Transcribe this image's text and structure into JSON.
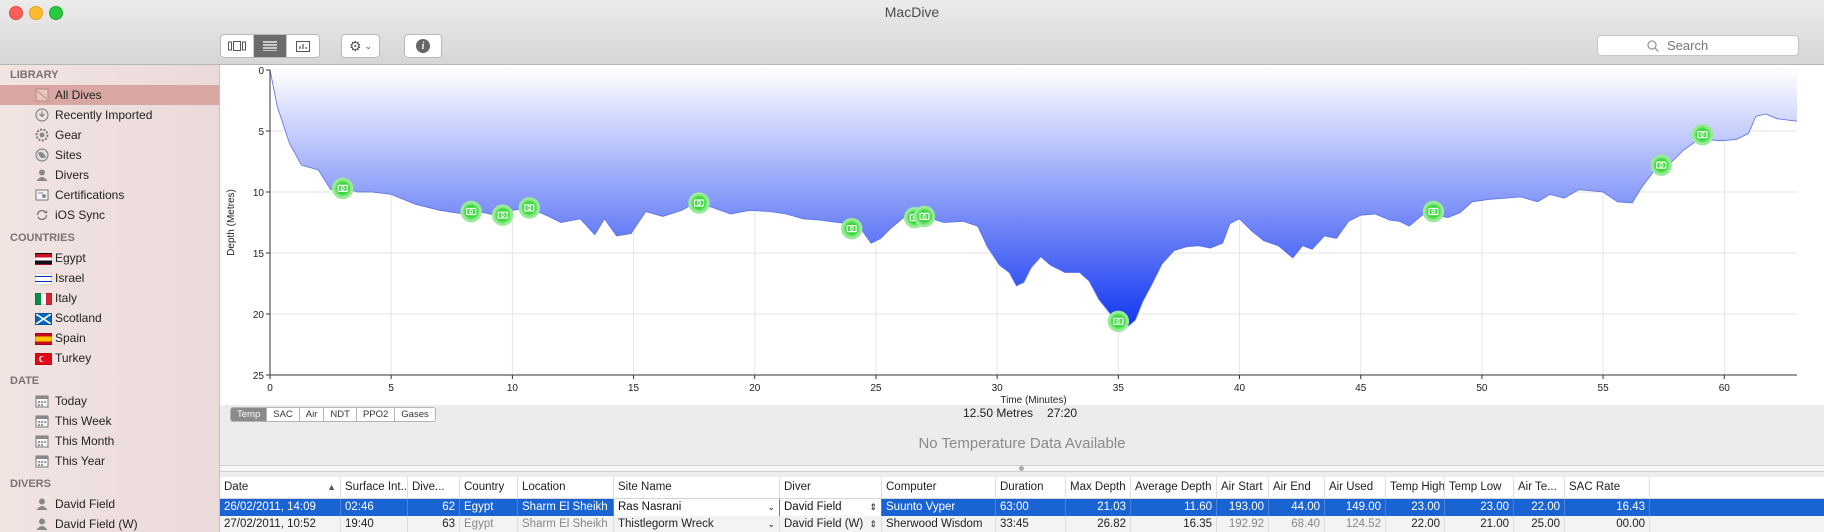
{
  "window": {
    "title": "MacDive"
  },
  "toolbar": {
    "search_placeholder": "Search"
  },
  "sidebar": {
    "sections": [
      {
        "header": "LIBRARY",
        "items": [
          {
            "label": "All Dives",
            "icon": "dives-icon",
            "selected": true
          },
          {
            "label": "Recently Imported",
            "icon": "import-icon"
          },
          {
            "label": "Gear",
            "icon": "gear-icon"
          },
          {
            "label": "Sites",
            "icon": "globe-icon"
          },
          {
            "label": "Divers",
            "icon": "person-icon"
          },
          {
            "label": "Certifications",
            "icon": "certificate-icon"
          },
          {
            "label": "iOS Sync",
            "icon": "sync-icon"
          }
        ]
      },
      {
        "header": "COUNTRIES",
        "items": [
          {
            "label": "Egypt",
            "icon": "flag-egypt-icon"
          },
          {
            "label": "Israel",
            "icon": "flag-israel-icon"
          },
          {
            "label": "Italy",
            "icon": "flag-italy-icon"
          },
          {
            "label": "Scotland",
            "icon": "flag-scotland-icon"
          },
          {
            "label": "Spain",
            "icon": "flag-spain-icon"
          },
          {
            "label": "Turkey",
            "icon": "flag-turkey-icon"
          }
        ]
      },
      {
        "header": "DATE",
        "items": [
          {
            "label": "Today",
            "icon": "calendar-icon"
          },
          {
            "label": "This Week",
            "icon": "calendar-icon"
          },
          {
            "label": "This Month",
            "icon": "calendar-icon"
          },
          {
            "label": "This Year",
            "icon": "calendar-icon"
          }
        ]
      },
      {
        "header": "DIVERS",
        "items": [
          {
            "label": "David Field",
            "icon": "person-icon"
          },
          {
            "label": "David Field (W)",
            "icon": "person-icon"
          }
        ]
      }
    ]
  },
  "chart_data": {
    "type": "area",
    "xlabel": "Time (Minutes)",
    "ylabel": "Depth (Metres)",
    "xlim": [
      0,
      63
    ],
    "ylim": [
      0,
      25
    ],
    "y_inverted": true,
    "x_ticks": [
      0,
      5,
      10,
      15,
      20,
      25,
      30,
      35,
      40,
      45,
      50,
      55,
      60
    ],
    "y_ticks": [
      0,
      5,
      10,
      15,
      20,
      25
    ],
    "grid": true,
    "colors": {
      "fill_top": "#ffffff",
      "fill_bottom": "#1236f2",
      "photo_marker": "#2fd12f"
    },
    "profile": [
      [
        0,
        0
      ],
      [
        0.3,
        3
      ],
      [
        0.8,
        6
      ],
      [
        1.3,
        7.8
      ],
      [
        2,
        8.2
      ],
      [
        2.5,
        9.8
      ],
      [
        3,
        9.6
      ],
      [
        3.6,
        10
      ],
      [
        4.2,
        10
      ],
      [
        5,
        10.2
      ],
      [
        6,
        11
      ],
      [
        7,
        11.5
      ],
      [
        8,
        11.8
      ],
      [
        8.6,
        11.6
      ],
      [
        9.3,
        11.9
      ],
      [
        10,
        11.5
      ],
      [
        10.7,
        11.3
      ],
      [
        11.5,
        12
      ],
      [
        12,
        12.5
      ],
      [
        12.8,
        12.2
      ],
      [
        13.4,
        13.5
      ],
      [
        13.8,
        12.2
      ],
      [
        14.3,
        13.6
      ],
      [
        14.9,
        13.4
      ],
      [
        15.5,
        11.6
      ],
      [
        16.2,
        12
      ],
      [
        17,
        11.5
      ],
      [
        17.6,
        10.8
      ],
      [
        18.3,
        11.3
      ],
      [
        19,
        11.8
      ],
      [
        19.8,
        11.5
      ],
      [
        20.6,
        11.6
      ],
      [
        21.3,
        11.8
      ],
      [
        22,
        12.2
      ],
      [
        22.7,
        12.3
      ],
      [
        23.4,
        12.5
      ],
      [
        24,
        12.6
      ],
      [
        24.3,
        12.8
      ],
      [
        24.8,
        14.2
      ],
      [
        25.2,
        13.8
      ],
      [
        25.6,
        13
      ],
      [
        26.2,
        12
      ],
      [
        27,
        12
      ],
      [
        27.8,
        12.5
      ],
      [
        28.6,
        12.4
      ],
      [
        29.2,
        12.8
      ],
      [
        29.6,
        14.5
      ],
      [
        30.1,
        16
      ],
      [
        30.5,
        16.6
      ],
      [
        30.8,
        17.7
      ],
      [
        31.1,
        17.4
      ],
      [
        31.4,
        16.2
      ],
      [
        31.8,
        15.3
      ],
      [
        32.2,
        16
      ],
      [
        32.8,
        16.6
      ],
      [
        33.4,
        16.6
      ],
      [
        33.8,
        17.3
      ],
      [
        34.2,
        18.8
      ],
      [
        34.6,
        19.8
      ],
      [
        35,
        20.8
      ],
      [
        35.4,
        21
      ],
      [
        35.7,
        20.5
      ],
      [
        36,
        19
      ],
      [
        36.4,
        17.5
      ],
      [
        36.8,
        15.9
      ],
      [
        37.3,
        14.8
      ],
      [
        37.8,
        14.5
      ],
      [
        38.3,
        14.4
      ],
      [
        38.8,
        14.6
      ],
      [
        39.3,
        14.2
      ],
      [
        39.6,
        12.6
      ],
      [
        40,
        12.2
      ],
      [
        40.5,
        13.2
      ],
      [
        41,
        14
      ],
      [
        41.6,
        14.4
      ],
      [
        42.2,
        15.4
      ],
      [
        42.6,
        14.4
      ],
      [
        43,
        14.7
      ],
      [
        43.5,
        13.6
      ],
      [
        44,
        13.8
      ],
      [
        44.5,
        12.4
      ],
      [
        45,
        11.9
      ],
      [
        45.6,
        11.8
      ],
      [
        46.2,
        12.3
      ],
      [
        46.6,
        12.4
      ],
      [
        47,
        12.8
      ],
      [
        47.6,
        11.8
      ],
      [
        48.1,
        11.9
      ],
      [
        48.6,
        12.1
      ],
      [
        49.1,
        11.7
      ],
      [
        49.6,
        10.8
      ],
      [
        50.3,
        10.6
      ],
      [
        51,
        10.5
      ],
      [
        51.6,
        10.4
      ],
      [
        52.3,
        10.8
      ],
      [
        52.8,
        10.2
      ],
      [
        53.4,
        10.5
      ],
      [
        54,
        9.8
      ],
      [
        55,
        10
      ],
      [
        55.6,
        10.8
      ],
      [
        56.2,
        10.9
      ],
      [
        56.6,
        9.6
      ],
      [
        57.2,
        8
      ],
      [
        57.8,
        7.6
      ],
      [
        58.3,
        6.6
      ],
      [
        59,
        5.6
      ],
      [
        59.8,
        5.8
      ],
      [
        60.5,
        5.7
      ],
      [
        61,
        5.2
      ],
      [
        61.3,
        3.8
      ],
      [
        61.7,
        3.6
      ],
      [
        62.2,
        4
      ],
      [
        62.6,
        4.1
      ],
      [
        63,
        4.2
      ]
    ],
    "photos": [
      [
        3,
        9.7
      ],
      [
        8.3,
        11.6
      ],
      [
        9.6,
        11.9
      ],
      [
        10.7,
        11.3
      ],
      [
        17.7,
        10.9
      ],
      [
        24,
        13
      ],
      [
        26.6,
        12.1
      ],
      [
        27,
        12
      ],
      [
        35,
        20.6
      ],
      [
        48,
        11.6
      ],
      [
        57.4,
        7.8
      ],
      [
        59.1,
        5.3
      ]
    ],
    "readout": {
      "depth": "12.50 Metres",
      "time": "27:20"
    },
    "tabs": [
      "Temp",
      "SAC",
      "Air",
      "NDT",
      "PPO2",
      "Gases"
    ],
    "active_tab": "Temp",
    "empty_message": "No Temperature Data Available"
  },
  "table": {
    "columns": [
      "Date",
      "Surface Int...",
      "Dive...",
      "Country",
      "Location",
      "Site Name",
      "Diver",
      "Computer",
      "Duration",
      "Max Depth",
      "Average Depth",
      "Air Start",
      "Air End",
      "Air Used",
      "Temp High",
      "Temp Low",
      "Air Te...",
      "SAC Rate"
    ],
    "rows": [
      [
        "26/02/2011, 14:09",
        "02:46",
        "62",
        "Egypt",
        "Sharm El Sheikh",
        "Ras Nasrani",
        "David Field",
        "Suunto Vyper",
        "63:00",
        "21.03",
        "11.60",
        "193.00",
        "44.00",
        "149.00",
        "23.00",
        "23.00",
        "22.00",
        "16.43"
      ],
      [
        "27/02/2011, 10:52",
        "19:40",
        "63",
        "Egypt",
        "Sharm El Sheikh",
        "Thistlegorm Wreck",
        "David Field (W)",
        "Sherwood Wisdom",
        "33:45",
        "26.82",
        "16.35",
        "192.92",
        "68.40",
        "124.52",
        "22.00",
        "21.00",
        "25.00",
        "00.00"
      ]
    ]
  }
}
